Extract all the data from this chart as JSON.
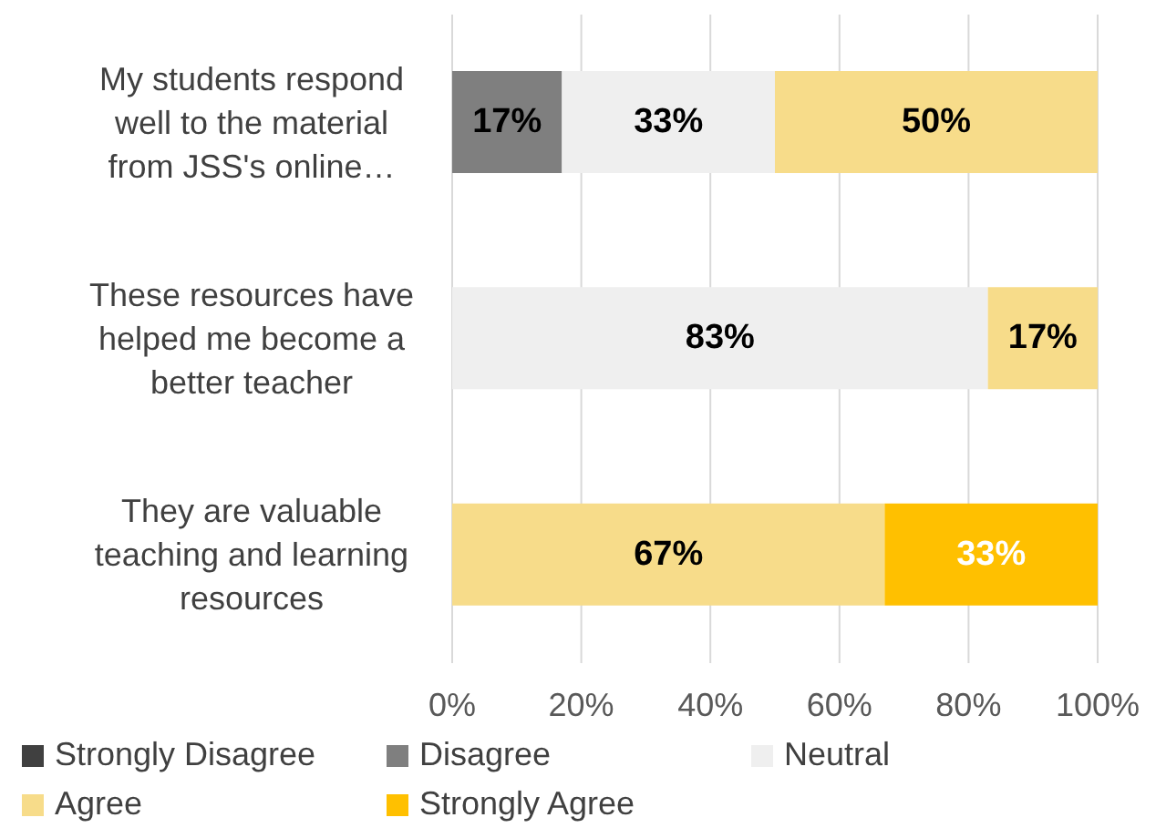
{
  "chart_data": {
    "type": "bar",
    "orientation": "horizontal",
    "stacked": true,
    "categories": [
      "My students respond well to the material from JSS's online…",
      "These resources have helped me become a better teacher",
      "They are valuable teaching and learning resources"
    ],
    "series": [
      {
        "name": "Strongly Disagree",
        "color": "#404040",
        "values": [
          0,
          0,
          0
        ],
        "value_labels": [
          null,
          null,
          null
        ]
      },
      {
        "name": "Disagree",
        "color": "#7f7f7f",
        "values": [
          17,
          0,
          0
        ],
        "value_labels": [
          "17%",
          null,
          null
        ]
      },
      {
        "name": "Neutral",
        "color": "#efefef",
        "values": [
          33,
          83,
          0
        ],
        "value_labels": [
          "33%",
          "83%",
          null
        ]
      },
      {
        "name": "Agree",
        "color": "#f7dc8a",
        "values": [
          50,
          17,
          67
        ],
        "value_labels": [
          "50%",
          "17%",
          "67%"
        ]
      },
      {
        "name": "Strongly Agree",
        "color": "#ffc000",
        "values": [
          0,
          0,
          33
        ],
        "value_labels": [
          null,
          null,
          "33%"
        ]
      }
    ],
    "xlim": [
      0,
      100
    ],
    "xticks": [
      {
        "value": 0,
        "label": "0%"
      },
      {
        "value": 20,
        "label": "20%"
      },
      {
        "value": 40,
        "label": "40%"
      },
      {
        "value": 60,
        "label": "60%"
      },
      {
        "value": 80,
        "label": "80%"
      },
      {
        "value": 100,
        "label": "100%"
      }
    ],
    "grid": "x",
    "legend": "bottom"
  }
}
